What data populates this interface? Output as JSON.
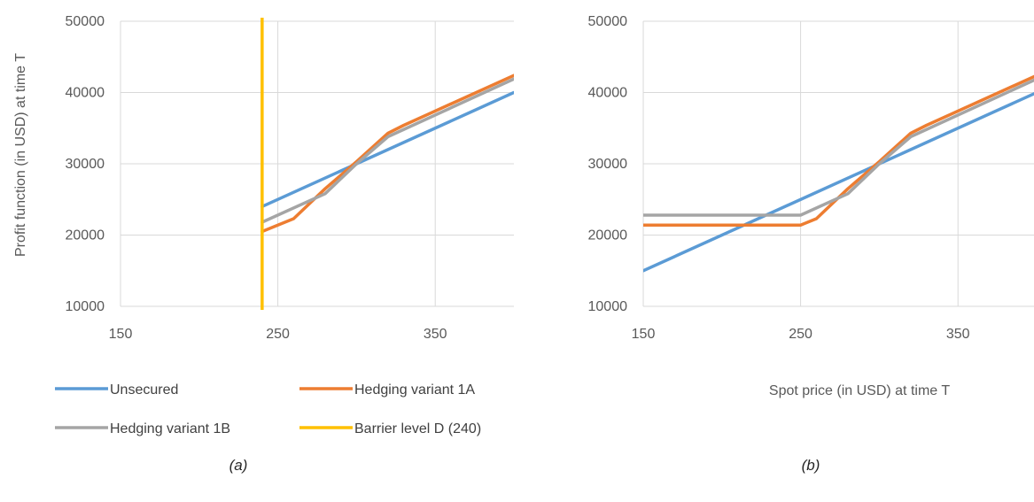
{
  "colors": {
    "unsecured": "#5b9bd5",
    "hedging_1a": "#ed7d31",
    "hedging_1b": "#a5a5a5",
    "barrier": "#ffc000",
    "grid": "#d9d9d9"
  },
  "chart_data": [
    {
      "id": "a",
      "type": "line",
      "caption": "(a)",
      "xlabel": "",
      "ylabel": "Profit function (in USD) at time T",
      "xlim": [
        150,
        400
      ],
      "ylim": [
        10000,
        50000
      ],
      "x_ticks": [
        150,
        250,
        350
      ],
      "y_ticks": [
        10000,
        20000,
        30000,
        40000,
        50000
      ],
      "grid": true,
      "series": [
        {
          "name": "Unsecured",
          "color_key": "unsecured",
          "points": [
            [
              240,
              24000
            ],
            [
              400,
              40000
            ]
          ]
        },
        {
          "name": "Hedging variant 1A",
          "color_key": "hedging_1a",
          "points": [
            [
              240,
              20500
            ],
            [
              260,
              22300
            ],
            [
              280,
              26500
            ],
            [
              300,
              30300
            ],
            [
              320,
              34300
            ],
            [
              330,
              35400
            ],
            [
              400,
              42400
            ]
          ]
        },
        {
          "name": "Hedging variant 1B",
          "color_key": "hedging_1b",
          "points": [
            [
              240,
              21800
            ],
            [
              280,
              25800
            ],
            [
              300,
              30000
            ],
            [
              320,
              33800
            ],
            [
              400,
              41900
            ]
          ]
        },
        {
          "name": "Barrier level D (240)",
          "color_key": "barrier",
          "vertical_at": 240
        }
      ]
    },
    {
      "id": "b",
      "type": "line",
      "caption": "(b)",
      "xlabel": "Spot price (in USD) at time T",
      "ylabel": "",
      "xlim": [
        150,
        400
      ],
      "ylim": [
        10000,
        50000
      ],
      "x_ticks": [
        150,
        250,
        350
      ],
      "y_ticks": [
        10000,
        20000,
        30000,
        40000,
        50000
      ],
      "grid": true,
      "series": [
        {
          "name": "Unsecured",
          "color_key": "unsecured",
          "points": [
            [
              150,
              15000
            ],
            [
              400,
              40000
            ]
          ]
        },
        {
          "name": "Hedging variant 1A",
          "color_key": "hedging_1a",
          "points": [
            [
              150,
              21400
            ],
            [
              250,
              21400
            ],
            [
              260,
              22300
            ],
            [
              280,
              26500
            ],
            [
              300,
              30300
            ],
            [
              320,
              34300
            ],
            [
              330,
              35400
            ],
            [
              400,
              42400
            ]
          ]
        },
        {
          "name": "Hedging variant 1B",
          "color_key": "hedging_1b",
          "points": [
            [
              150,
              22800
            ],
            [
              250,
              22800
            ],
            [
              280,
              25800
            ],
            [
              300,
              30000
            ],
            [
              320,
              33800
            ],
            [
              400,
              41900
            ]
          ]
        }
      ]
    }
  ],
  "legend": {
    "items": [
      {
        "label": "Unsecured",
        "color_key": "unsecured"
      },
      {
        "label": "Hedging variant 1A",
        "color_key": "hedging_1a"
      },
      {
        "label": "Hedging variant 1B",
        "color_key": "hedging_1b"
      },
      {
        "label": "Barrier level D (240)",
        "color_key": "barrier"
      }
    ]
  }
}
